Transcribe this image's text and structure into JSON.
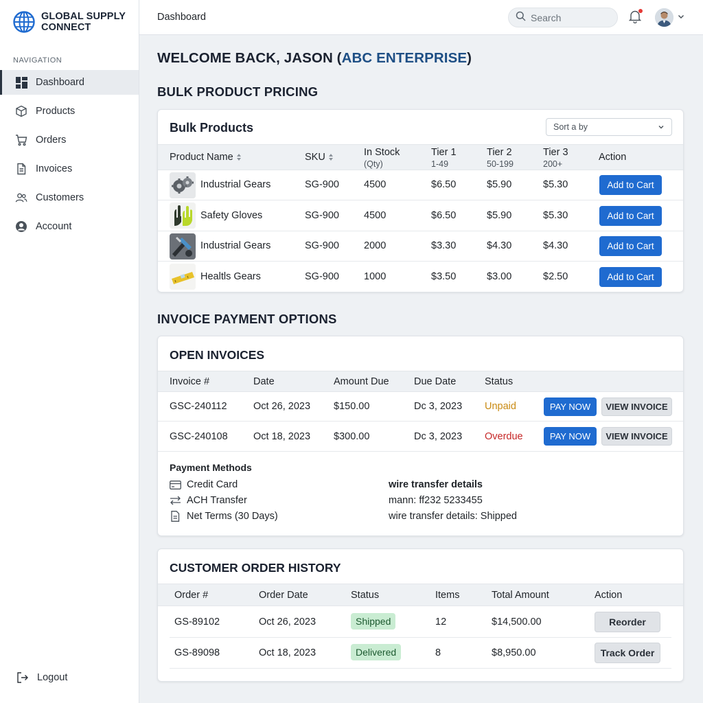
{
  "brand": {
    "line1": "GLOBAL SUPPLY",
    "line2": "CONNECT",
    "logo_icon": "globe-icon"
  },
  "sidebar": {
    "heading": "NAVIGATION",
    "items": [
      {
        "label": "Dashboard",
        "icon": "dashboard-icon",
        "active": true
      },
      {
        "label": "Products",
        "icon": "box-icon"
      },
      {
        "label": "Orders",
        "icon": "cart-icon"
      },
      {
        "label": "Invoices",
        "icon": "document-icon"
      },
      {
        "label": "Customers",
        "icon": "users-icon"
      },
      {
        "label": "Account",
        "icon": "user-circle-icon"
      }
    ],
    "logout": "Logout"
  },
  "topbar": {
    "title": "Dashboard",
    "search_placeholder": "Search"
  },
  "welcome": {
    "prefix": "WELCOME BACK, JASON (",
    "company": "ABC ENTERPRISE",
    "suffix": ")"
  },
  "pricing": {
    "section_title": "BULK PRODUCT PRICING",
    "card_title": "Bulk Products",
    "sort_label": "Sort a by",
    "headers": {
      "product": "Product Name",
      "sku": "SKU",
      "stock": "In Stock",
      "stock_sub": "(Qty)",
      "tier1": "Tier 1",
      "tier1_sub": "1-49",
      "tier2": "Tier 2",
      "tier2_sub": "50-199",
      "tier3": "Tier 3",
      "tier3_sub": "200+",
      "action": "Action"
    },
    "rows": [
      {
        "name": "Industrial Gears",
        "sku": "SG-900",
        "stock": "4500",
        "t1": "$6.50",
        "t2": "$5.90",
        "t3": "$5.30",
        "action": "Add to Cart",
        "image": "gears-image"
      },
      {
        "name": "Safety Gloves",
        "sku": "SG-900",
        "stock": "4500",
        "t1": "$6.50",
        "t2": "$5.90",
        "t3": "$5.30",
        "action": "Add to Cart",
        "image": "gloves-image"
      },
      {
        "name": "Industrial Gears",
        "sku": "SG-900",
        "stock": "2000",
        "t1": "$3.30",
        "t2": "$4.30",
        "t3": "$4.30",
        "action": "Add to Cart",
        "image": "tools-image"
      },
      {
        "name": "Healtls Gears",
        "sku": "SG-900",
        "stock": "1000",
        "t1": "$3.50",
        "t2": "$3.00",
        "t3": "$2.50",
        "action": "Add to Cart",
        "image": "level-image"
      }
    ]
  },
  "invoices": {
    "section_title": "INVOICE PAYMENT OPTIONS",
    "card_title": "OPEN INVOICES",
    "headers": {
      "invoice": "Invoice #",
      "date": "Date",
      "amount": "Amount Due",
      "due": "Due Date",
      "status": "Status"
    },
    "rows": [
      {
        "invoice": "GSC-240112",
        "date": "Oct 26, 2023",
        "amount": "$150.00",
        "due": "Dc 3, 2023",
        "status": "Unpaid",
        "pay": "PAY NOW",
        "view": "VIEW INVOICE"
      },
      {
        "invoice": "GSC-240108",
        "date": "Oct 18, 2023",
        "amount": "$300.00",
        "due": "Dc 3, 2023",
        "status": "Overdue",
        "pay": "PAY NOW",
        "view": "VIEW INVOICE"
      }
    ],
    "payment_methods_title": "Payment Methods",
    "payment_methods": [
      "Credit Card",
      "ACH Transfer",
      "Net Terms (30 Days)"
    ],
    "wire_title": "wire transfer details",
    "wire_line1": "mann: ff232 5233455",
    "wire_line2": "wire transfer details: Shipped"
  },
  "orders": {
    "card_title": "CUSTOMER ORDER HISTORY",
    "headers": {
      "order": "Order #",
      "date": "Order Date",
      "status": "Status",
      "items": "Items",
      "total": "Total Amount",
      "action": "Action"
    },
    "rows": [
      {
        "order": "GS-89102",
        "date": "Oct 26, 2023",
        "status": "Shipped",
        "items": "12",
        "total": "$14,500.00",
        "action": "Reorder"
      },
      {
        "order": "GS-89098",
        "date": "Oct 18, 2023",
        "status": "Delivered",
        "items": "8",
        "total": "$8,950.00",
        "action": "Track Order"
      }
    ]
  },
  "colors": {
    "accent": "#1f6bd0",
    "brand_blue": "#1e4f85",
    "unpaid": "#c98a12",
    "overdue": "#c62828",
    "success_bg": "#c9ecd2"
  }
}
